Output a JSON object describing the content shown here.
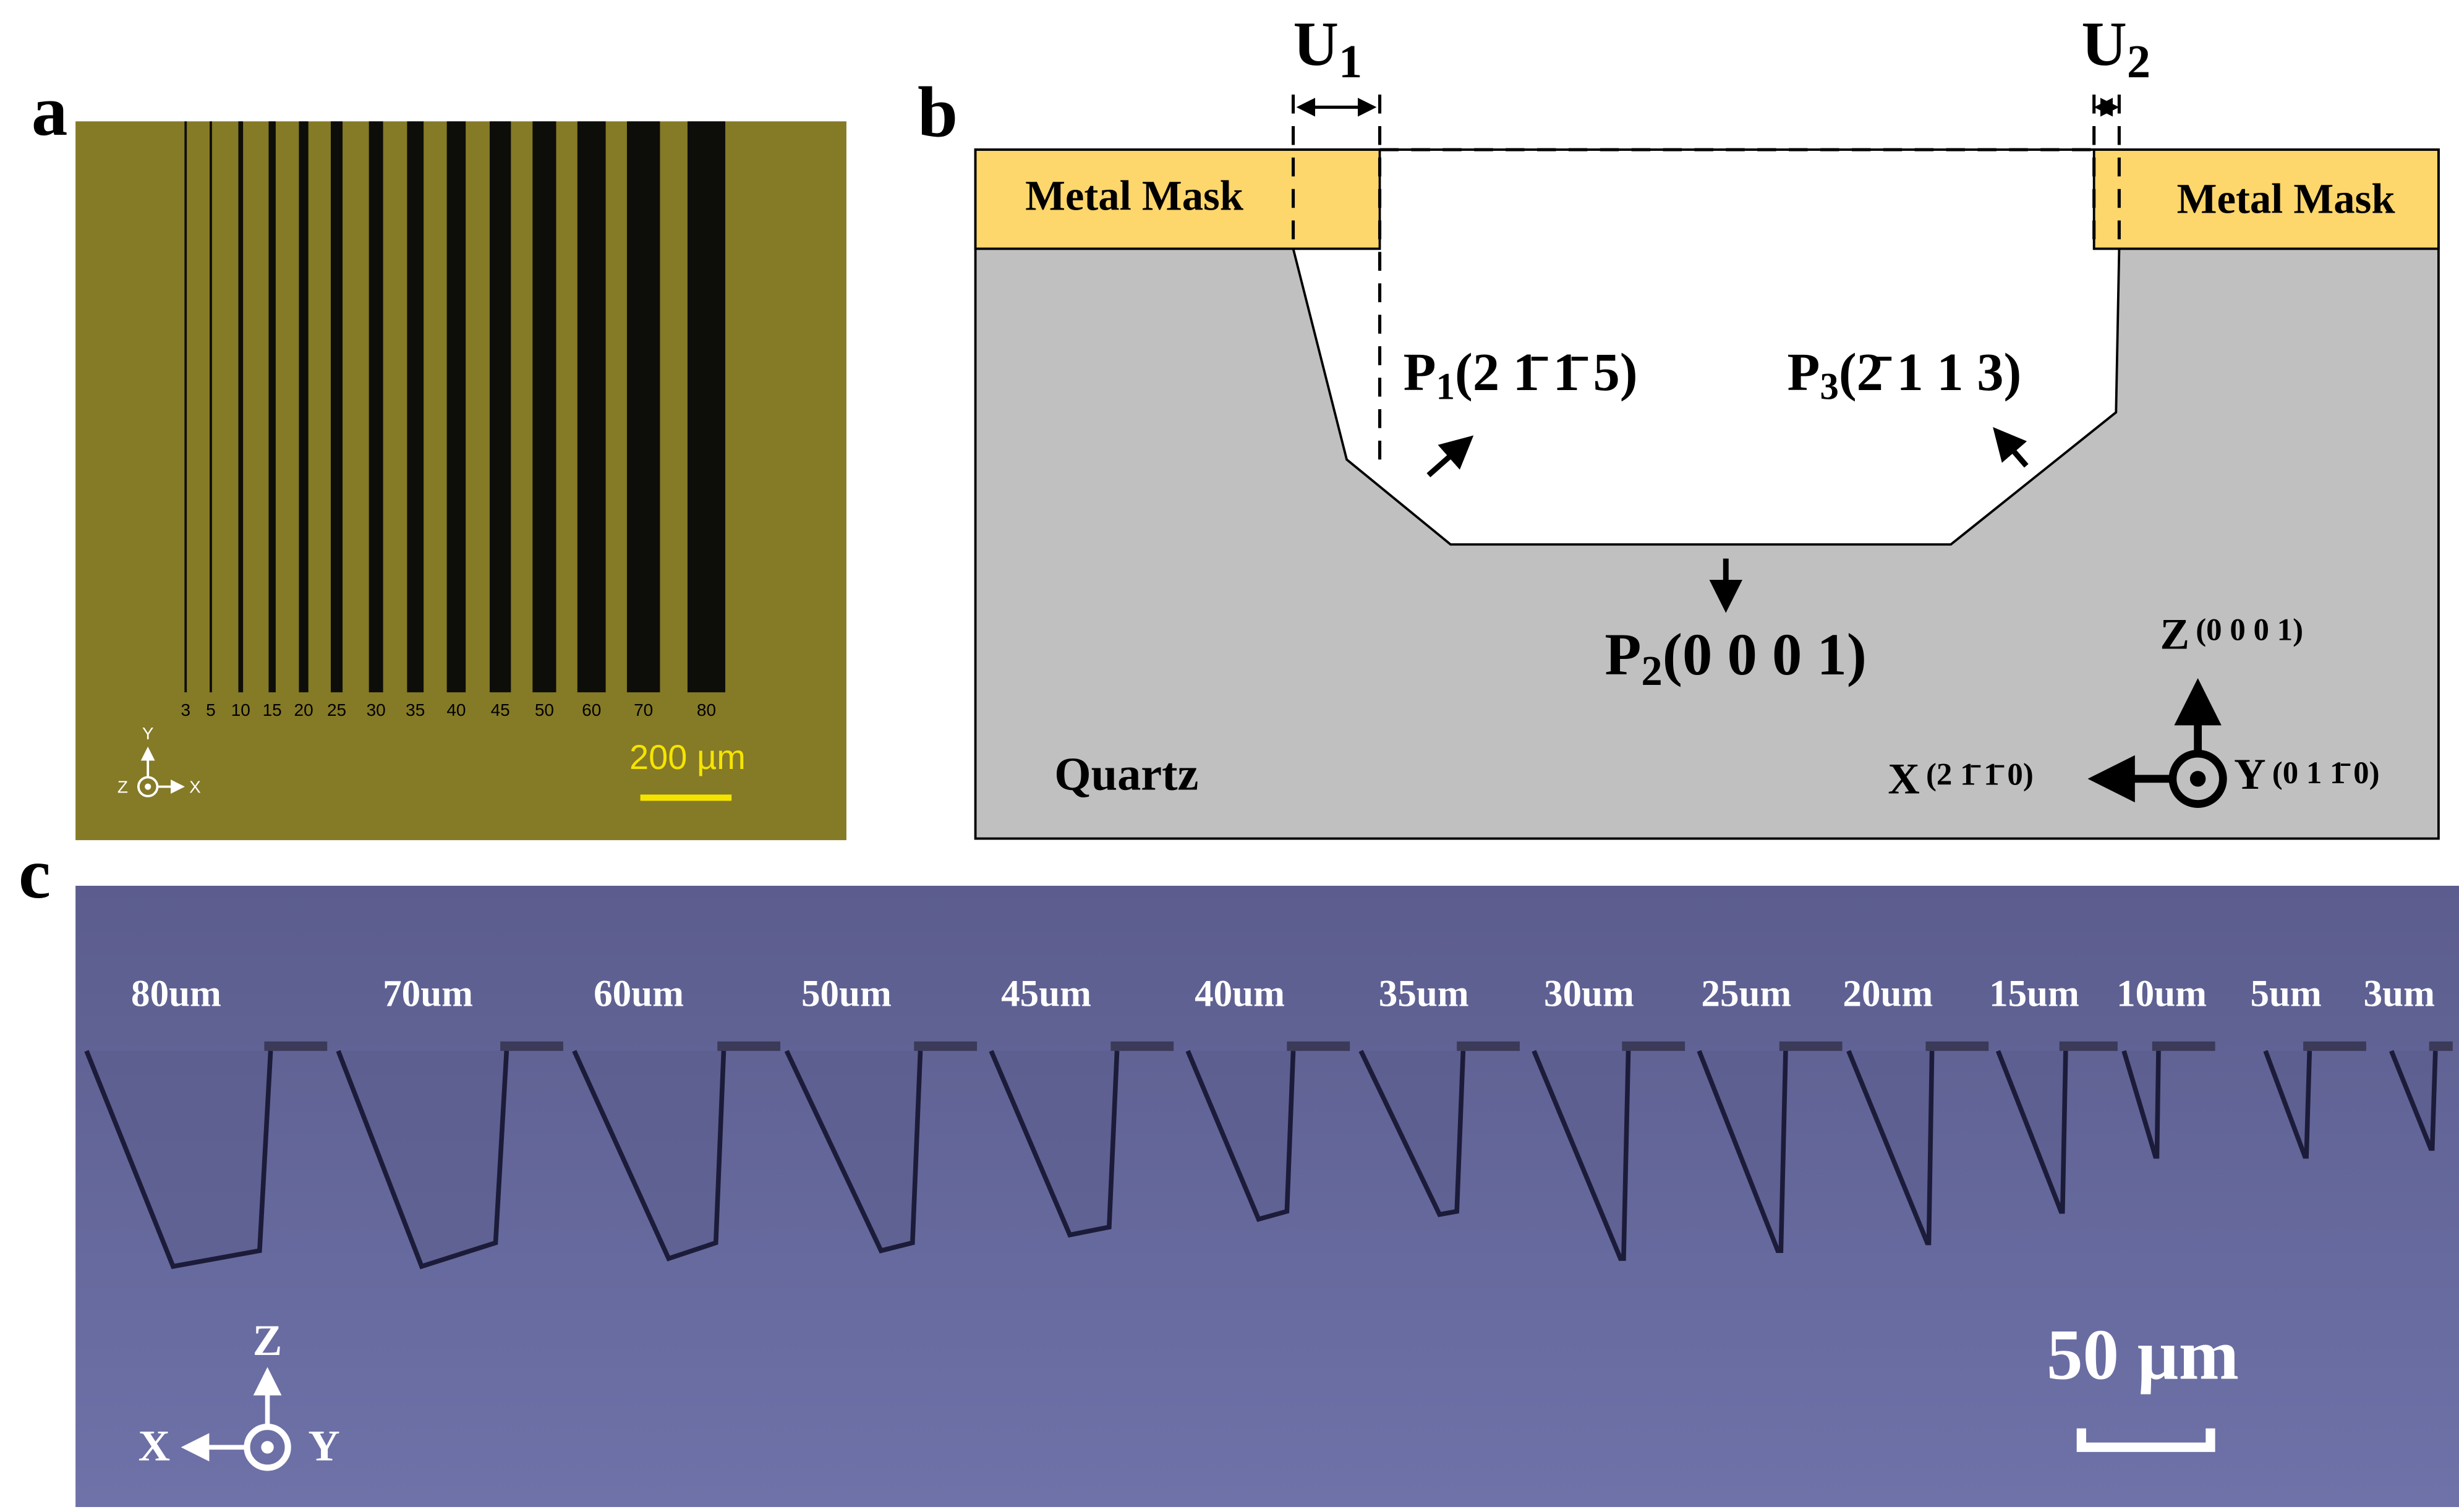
{
  "panel_a": {
    "label": "a",
    "line_widths": [
      "3",
      "5",
      "10",
      "15",
      "20",
      "25",
      "30",
      "35",
      "40",
      "45",
      "50",
      "60",
      "70",
      "80"
    ],
    "scale_bar": "200 µm",
    "axes": {
      "y": "Y",
      "z": "Z",
      "x": "X"
    }
  },
  "panel_b": {
    "label": "b",
    "u1": {
      "letter": "U",
      "sub": "1"
    },
    "u2": {
      "letter": "U",
      "sub": "2"
    },
    "mask_left": "Metal Mask",
    "mask_right": "Metal Mask",
    "p1": {
      "letter": "P",
      "sub": "1",
      "plane": "(2 1̄ 1̄ 5)"
    },
    "p3": {
      "letter": "P",
      "sub": "3",
      "plane": "(2̄ 1 1 3)"
    },
    "p2": {
      "letter": "P",
      "sub": "2",
      "plane": "(0 0 0 1)"
    },
    "substrate": "Quartz",
    "axes": {
      "z": "Z",
      "z_dir": "(0 0 0 1)",
      "x": "X",
      "x_dir": "(2 1̄ 1̄ 0)",
      "y": "Y",
      "y_dir": "(0 1 1̄ 0)"
    }
  },
  "panel_c": {
    "label": "c",
    "trench_labels": [
      "80um",
      "70um",
      "60um",
      "50um",
      "45um",
      "40um",
      "35um",
      "30um",
      "25um",
      "20um",
      "15um",
      "10um",
      "5um",
      "3um"
    ],
    "scale_bar": "50 µm",
    "axes": {
      "z": "Z",
      "x": "X",
      "y": "Y"
    }
  }
}
